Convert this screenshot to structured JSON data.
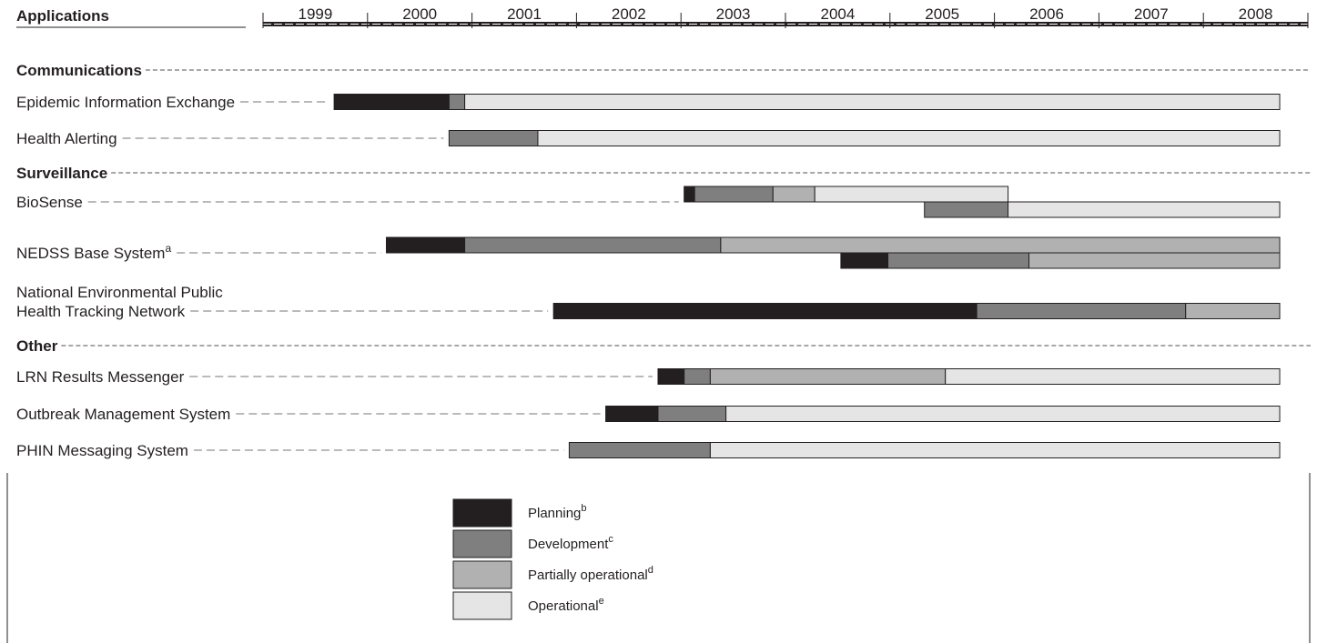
{
  "chart_data": {
    "type": "gantt",
    "header": {
      "applications_label": "Applications"
    },
    "years": [
      "1999",
      "2000",
      "2001",
      "2002",
      "2003",
      "2004",
      "2005",
      "2006",
      "2007",
      "2008"
    ],
    "status_colors": {
      "planning": "#231f20",
      "development": "#7f7f7f",
      "partial": "#b1b1b1",
      "operational": "#e5e5e5"
    },
    "groups": [
      {
        "title": "Communications",
        "rows": [
          {
            "label": "Epidemic Information Exchange",
            "segments": [
              {
                "start": 1998.75,
                "end": 1999.85,
                "status": "planning"
              },
              {
                "start": 1999.85,
                "end": 2000.0,
                "status": "development"
              },
              {
                "start": 2000.0,
                "end": 2007.8,
                "status": "operational"
              }
            ]
          },
          {
            "label": "Health Alerting",
            "segments": [
              {
                "start": 1999.85,
                "end": 2000.7,
                "status": "development"
              },
              {
                "start": 2000.7,
                "end": 2007.8,
                "status": "operational"
              }
            ]
          }
        ]
      },
      {
        "title": "Surveillance",
        "rows": [
          {
            "label": "BioSense",
            "segments": [
              {
                "start": 2002.1,
                "end": 2002.2,
                "status": "planning"
              },
              {
                "start": 2002.2,
                "end": 2002.95,
                "status": "development"
              },
              {
                "start": 2002.95,
                "end": 2003.35,
                "status": "partial"
              },
              {
                "start": 2003.35,
                "end": 2005.2,
                "status": "operational"
              }
            ],
            "segments2": [
              {
                "start": 2004.4,
                "end": 2005.2,
                "status": "development"
              },
              {
                "start": 2005.2,
                "end": 2007.8,
                "status": "operational"
              }
            ]
          },
          {
            "label": "NEDSS Base System",
            "label_sup": "a",
            "segments": [
              {
                "start": 1999.25,
                "end": 2000.0,
                "status": "planning"
              },
              {
                "start": 2000.0,
                "end": 2002.45,
                "status": "development"
              },
              {
                "start": 2002.45,
                "end": 2007.8,
                "status": "partial"
              }
            ],
            "segments2": [
              {
                "start": 2003.6,
                "end": 2004.05,
                "status": "planning"
              },
              {
                "start": 2004.05,
                "end": 2005.4,
                "status": "development"
              },
              {
                "start": 2005.4,
                "end": 2007.8,
                "status": "partial"
              }
            ]
          },
          {
            "label": "National Environmental Public",
            "label_line2": "Health Tracking Network",
            "segments": [
              {
                "start": 2000.85,
                "end": 2004.9,
                "status": "planning"
              },
              {
                "start": 2004.9,
                "end": 2006.9,
                "status": "development"
              },
              {
                "start": 2006.9,
                "end": 2007.8,
                "status": "partial"
              }
            ]
          }
        ]
      },
      {
        "title": "Other",
        "rows": [
          {
            "label": "LRN Results Messenger",
            "segments": [
              {
                "start": 2001.85,
                "end": 2002.1,
                "status": "planning"
              },
              {
                "start": 2002.1,
                "end": 2002.35,
                "status": "development"
              },
              {
                "start": 2002.35,
                "end": 2004.6,
                "status": "partial"
              },
              {
                "start": 2004.6,
                "end": 2007.8,
                "status": "operational"
              }
            ]
          },
          {
            "label": "Outbreak Management System",
            "segments": [
              {
                "start": 2001.35,
                "end": 2001.85,
                "status": "planning"
              },
              {
                "start": 2001.85,
                "end": 2002.5,
                "status": "development"
              },
              {
                "start": 2002.5,
                "end": 2007.8,
                "status": "operational"
              }
            ]
          },
          {
            "label": "PHIN Messaging System",
            "segments": [
              {
                "start": 2001.0,
                "end": 2002.35,
                "status": "development"
              },
              {
                "start": 2002.35,
                "end": 2007.8,
                "status": "operational"
              }
            ]
          }
        ]
      }
    ],
    "legend": [
      {
        "status": "planning",
        "label": "Planning",
        "sup": "b"
      },
      {
        "status": "development",
        "label": "Development",
        "sup": "c"
      },
      {
        "status": "partial",
        "label": "Partially operational",
        "sup": "d"
      },
      {
        "status": "operational",
        "label": "Operational",
        "sup": "e"
      }
    ]
  }
}
